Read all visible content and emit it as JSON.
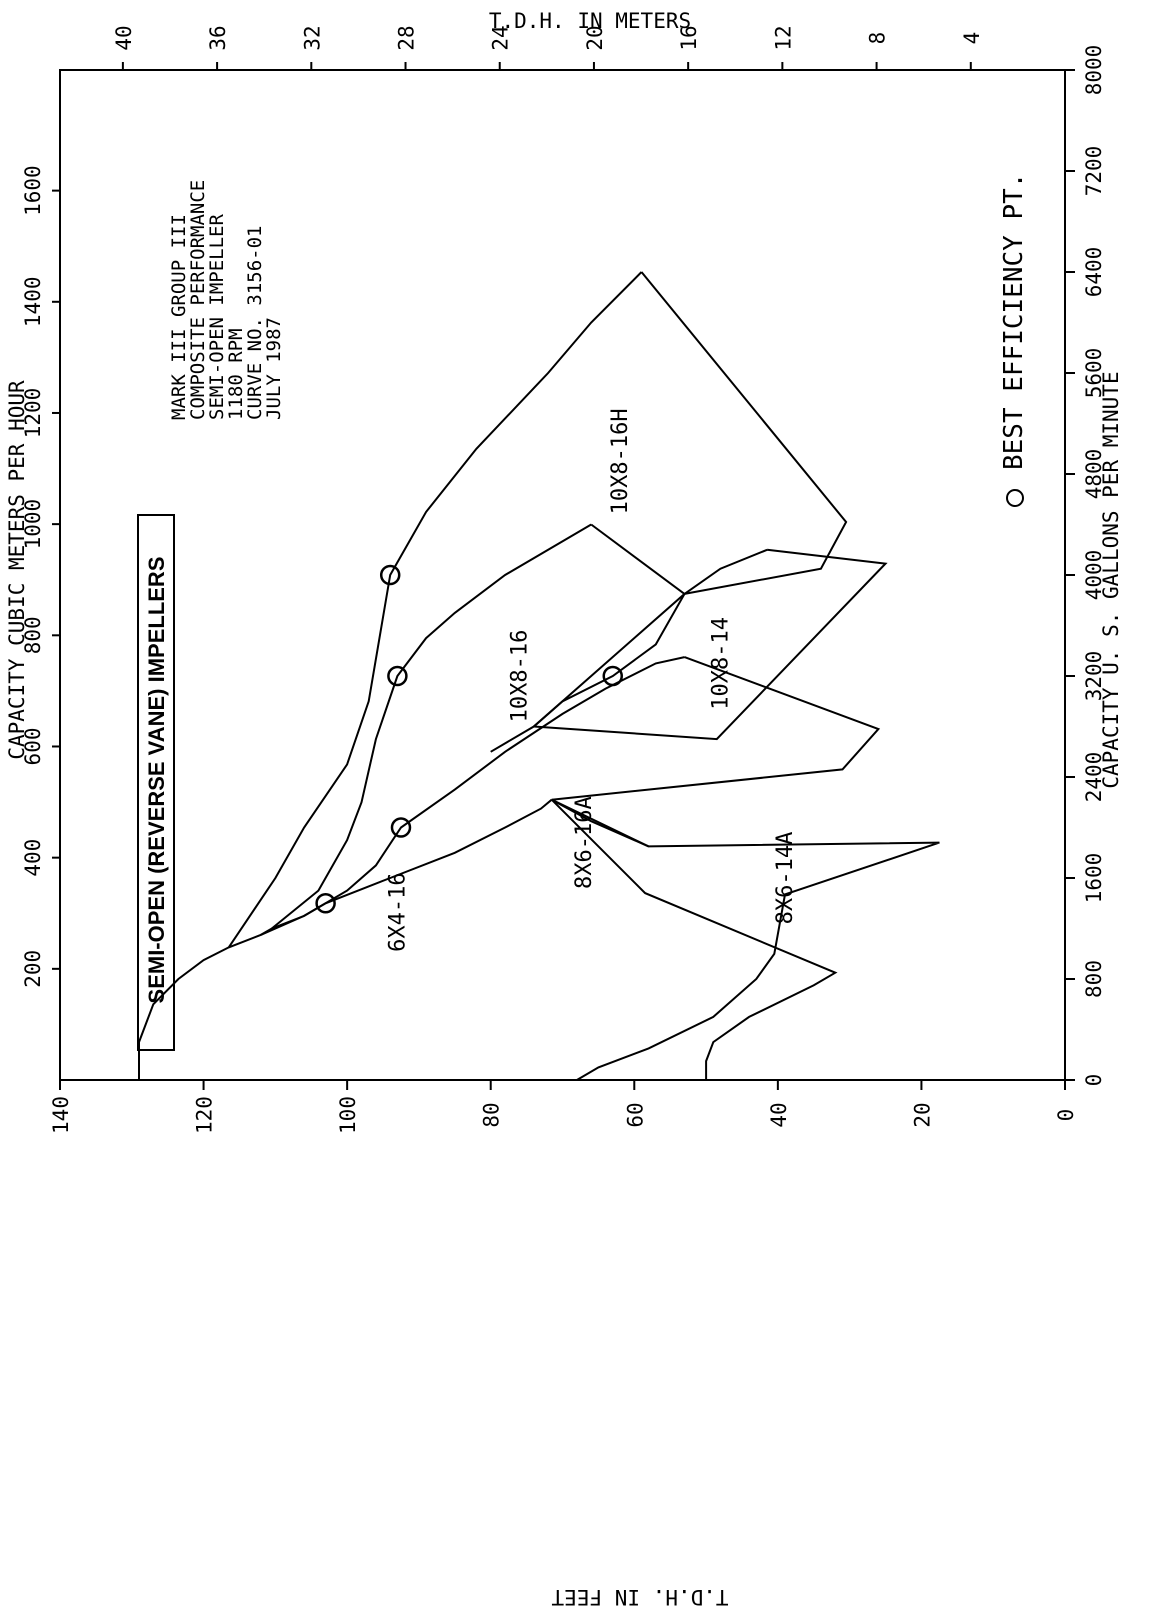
{
  "chart_data": {
    "type": "line",
    "banner": "SEMI-OPEN (REVERSE VANE) IMPELLERS",
    "notes": [
      "MARK III GROUP III",
      "COMPOSITE PERFORMANCE",
      "SEMI-OPEN IMPELLER",
      "1180 RPM",
      "CURVE NO. 3156-01",
      "JULY 1987"
    ],
    "legend_label": "O BEST EFFICIENCY PT.",
    "axes": {
      "tdh_feet": {
        "title": "T.D.H. IN FEET",
        "range": [
          0,
          140
        ],
        "ticks": [
          "0",
          "20",
          "40",
          "60",
          "80",
          "100",
          "120",
          "140"
        ]
      },
      "tdh_meters": {
        "title": "T.D.H. IN METERS",
        "range": [
          0,
          42.67
        ],
        "ticks": [
          "4",
          "8",
          "12",
          "16",
          "20",
          "24",
          "28",
          "32",
          "36",
          "40"
        ]
      },
      "capacity_gpm": {
        "title": "CAPACITY U. S. GALLONS PER MINUTE",
        "range": [
          0,
          8000
        ],
        "ticks": [
          "0",
          "800",
          "1600",
          "2400",
          "3200",
          "4000",
          "4800",
          "5600",
          "6400",
          "7200",
          "8000"
        ]
      },
      "capacity_m3h": {
        "title": "CAPACITY CUBIC METERS PER HOUR",
        "range": [
          0,
          1817
        ],
        "ticks": [
          "200",
          "400",
          "600",
          "800",
          "1000",
          "1200",
          "1400",
          "1600"
        ]
      }
    },
    "series": [
      {
        "name": "6X4-16",
        "upper_curve": [
          [
            0,
            129
          ],
          [
            300,
            129
          ],
          [
            600,
            127
          ],
          [
            800,
            123.5
          ],
          [
            950,
            120
          ],
          [
            1050,
            116.5
          ],
          [
            1150,
            112
          ],
          [
            1200,
            110.5
          ],
          [
            1300,
            106
          ],
          [
            1400,
            103
          ],
          [
            1600,
            94
          ],
          [
            1800,
            85
          ],
          [
            2000,
            78
          ],
          [
            2150,
            73
          ],
          [
            2220,
            71.5
          ]
        ],
        "lower_boundary": [
          [
            2220,
            71.5
          ],
          [
            1480,
            58.5
          ],
          [
            850,
            32
          ],
          [
            750,
            35
          ],
          [
            500,
            44
          ],
          [
            300,
            49
          ],
          [
            150,
            50
          ],
          [
            0,
            50
          ]
        ],
        "bep": [
          1400,
          103
        ]
      },
      {
        "name": "8X6-16A",
        "upper_curve": [
          [
            1150,
            112
          ],
          [
            1300,
            106
          ],
          [
            1500,
            100
          ],
          [
            1700,
            96
          ],
          [
            2000,
            92.5
          ],
          [
            2300,
            85
          ],
          [
            2600,
            78
          ],
          [
            2900,
            70
          ],
          [
            3100,
            64
          ],
          [
            3300,
            57
          ],
          [
            3350,
            53
          ]
        ],
        "lower_boundary": [
          [
            3350,
            53
          ],
          [
            2780,
            26
          ],
          [
            2460,
            31
          ],
          [
            2220,
            71.5
          ]
        ],
        "bep": [
          2000,
          92.5
        ]
      },
      {
        "name": "8X6-14A",
        "upper_curve": [
          [
            2220,
            71.5
          ],
          [
            2050,
            66
          ],
          [
            1850,
            58
          ]
        ],
        "lower_boundary": [
          [
            2220,
            71.5
          ],
          [
            1850,
            58
          ],
          [
            1880,
            17.5
          ],
          [
            1470,
            39
          ],
          [
            1000,
            40.5
          ],
          [
            800,
            43
          ],
          [
            500,
            49
          ],
          [
            250,
            58
          ],
          [
            100,
            65
          ],
          [
            0,
            68
          ]
        ],
        "bep": null
      },
      {
        "name": "10X8-16",
        "upper_curve": [
          [
            1200,
            110.5
          ],
          [
            1500,
            104
          ],
          [
            1900,
            100
          ],
          [
            2200,
            98
          ],
          [
            2700,
            96
          ],
          [
            3200,
            93
          ],
          [
            3500,
            89
          ],
          [
            3700,
            85
          ],
          [
            4000,
            78
          ],
          [
            4400,
            66
          ]
        ],
        "lower_boundary": [
          [
            4400,
            66
          ],
          [
            3850,
            53
          ],
          [
            2800,
            74
          ],
          [
            2600,
            80
          ]
        ],
        "bep": [
          3200,
          93
        ]
      },
      {
        "name": "10X8-14",
        "upper_curve": [
          [
            2800,
            74
          ],
          [
            3000,
            70
          ],
          [
            3200,
            63
          ],
          [
            3450,
            57
          ],
          [
            3850,
            53
          ],
          [
            4050,
            48
          ],
          [
            4200,
            41.5
          ]
        ],
        "lower_boundary": [
          [
            4200,
            41.5
          ],
          [
            4090,
            25
          ],
          [
            2700,
            48.5
          ],
          [
            2800,
            74
          ]
        ],
        "bep": [
          3200,
          63
        ]
      },
      {
        "name": "10X8-16H",
        "upper_curve": [
          [
            1050,
            116.5
          ],
          [
            1600,
            110
          ],
          [
            2000,
            106
          ],
          [
            2500,
            100
          ],
          [
            3000,
            97
          ],
          [
            4000,
            94
          ],
          [
            4500,
            89
          ],
          [
            5000,
            82
          ],
          [
            5600,
            72
          ],
          [
            6000,
            66
          ],
          [
            6400,
            59
          ]
        ],
        "lower_boundary": [
          [
            6400,
            59
          ],
          [
            4420,
            30.5
          ],
          [
            4050,
            34
          ],
          [
            3850,
            53
          ]
        ],
        "bep": [
          4000,
          94
        ]
      }
    ]
  }
}
